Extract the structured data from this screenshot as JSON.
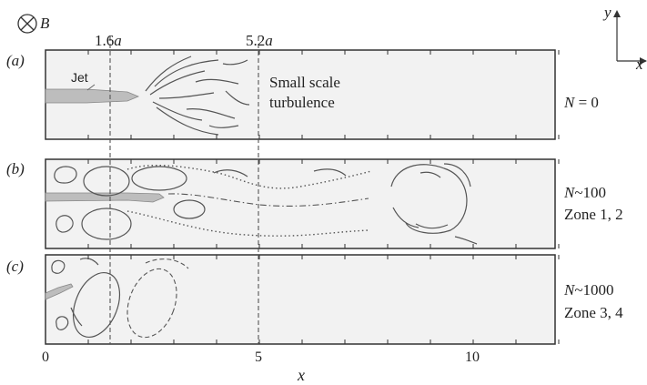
{
  "field": {
    "symbol": "B"
  },
  "markers": [
    {
      "coef": "1.6",
      "var": "a"
    },
    {
      "coef": "5.2",
      "var": "a"
    }
  ],
  "axes": {
    "x_label": "x",
    "x_ticks": [
      "0",
      "5",
      "10"
    ],
    "compass_x": "x",
    "compass_y": "y"
  },
  "panels": [
    {
      "id": "(a)",
      "jet_label": "Jet",
      "annotation_line1": "Small scale",
      "annotation_line2": "turbulence",
      "regime_symbol": "N",
      "regime_value": " = 0",
      "zone": ""
    },
    {
      "id": "(b)",
      "regime_symbol": "N",
      "regime_value": "~100",
      "zone": "Zone 1, 2"
    },
    {
      "id": "(c)",
      "regime_symbol": "N",
      "regime_value": "~1000",
      "zone": "Zone 3, 4"
    }
  ],
  "colors": {
    "outline": "#333333",
    "jet_fill": "#bdbdbd",
    "panel_fill": "#f2f2f2",
    "stroke": "#555555"
  }
}
